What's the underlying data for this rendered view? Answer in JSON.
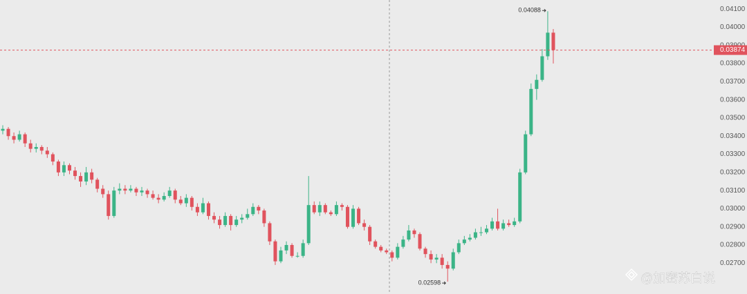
{
  "chart_data": {
    "type": "candlestick",
    "opens": [
      0.0343,
      0.0344,
      0.034,
      0.0338,
      0.0341,
      0.0336,
      0.0333,
      0.0334,
      0.0332,
      0.033,
      0.0326,
      0.032,
      0.0324,
      0.0321,
      0.0318,
      0.0315,
      0.032,
      0.0316,
      0.0311,
      0.0308,
      0.0296,
      0.031,
      0.0311,
      0.031,
      0.0311,
      0.0309,
      0.031,
      0.0308,
      0.0306,
      0.0305,
      0.0307,
      0.031,
      0.0305,
      0.0303,
      0.0306,
      0.0301,
      0.0298,
      0.0303,
      0.0296,
      0.0294,
      0.0291,
      0.0296,
      0.0291,
      0.0294,
      0.0295,
      0.0297,
      0.0301,
      0.0299,
      0.0292,
      0.0282,
      0.0271,
      0.0277,
      0.028,
      0.0274,
      0.0274,
      0.0281,
      0.0302,
      0.0298,
      0.0302,
      0.0298,
      0.0297,
      0.0302,
      0.0301,
      0.029,
      0.03,
      0.0292,
      0.029,
      0.0282,
      0.0279,
      0.0277,
      0.0276,
      0.0273,
      0.0279,
      0.0283,
      0.0288,
      0.0286,
      0.0278,
      0.0275,
      0.0272,
      0.0273,
      0.0269,
      0.0267,
      0.0276,
      0.0281,
      0.0283,
      0.0284,
      0.0287,
      0.0287,
      0.0289,
      0.0293,
      0.0289,
      0.0292,
      0.0291,
      0.0293,
      0.032,
      0.0341,
      0.0366,
      0.0371,
      0.0384,
      0.0397
    ],
    "highs": [
      0.0346,
      0.0345,
      0.0342,
      0.0343,
      0.0342,
      0.0338,
      0.0336,
      0.0335,
      0.0334,
      0.0331,
      0.0327,
      0.0326,
      0.0325,
      0.0323,
      0.032,
      0.0323,
      0.0322,
      0.0317,
      0.0313,
      0.031,
      0.0312,
      0.0314,
      0.0313,
      0.0313,
      0.0312,
      0.0312,
      0.0311,
      0.031,
      0.0308,
      0.0309,
      0.0312,
      0.0311,
      0.0307,
      0.0308,
      0.0307,
      0.0303,
      0.0306,
      0.0304,
      0.0298,
      0.0296,
      0.0298,
      0.0297,
      0.0296,
      0.0297,
      0.03,
      0.0303,
      0.0302,
      0.03,
      0.0293,
      0.0283,
      0.0279,
      0.0282,
      0.0281,
      0.0276,
      0.0283,
      0.0318,
      0.0304,
      0.0304,
      0.0303,
      0.0299,
      0.0304,
      0.0303,
      0.0302,
      0.0302,
      0.0301,
      0.0294,
      0.0291,
      0.0283,
      0.028,
      0.0278,
      0.0277,
      0.0281,
      0.0285,
      0.0291,
      0.0289,
      0.0287,
      0.0279,
      0.0277,
      0.0275,
      0.0275,
      0.0271,
      0.0278,
      0.0283,
      0.0285,
      0.0286,
      0.0289,
      0.029,
      0.0291,
      0.0295,
      0.03,
      0.0294,
      0.0294,
      0.0295,
      0.0322,
      0.0343,
      0.0369,
      0.0374,
      0.0388,
      0.04088,
      0.0399
    ],
    "lows": [
      0.0341,
      0.0338,
      0.0336,
      0.0337,
      0.0334,
      0.0331,
      0.0331,
      0.033,
      0.0328,
      0.0324,
      0.0318,
      0.0318,
      0.0319,
      0.0316,
      0.0312,
      0.0313,
      0.0314,
      0.0309,
      0.0306,
      0.0294,
      0.0295,
      0.0308,
      0.0308,
      0.0309,
      0.0307,
      0.0307,
      0.0306,
      0.0305,
      0.0303,
      0.0304,
      0.0306,
      0.0303,
      0.0302,
      0.0301,
      0.0299,
      0.0296,
      0.0297,
      0.0294,
      0.0292,
      0.0289,
      0.029,
      0.0288,
      0.029,
      0.0292,
      0.0294,
      0.0296,
      0.0297,
      0.029,
      0.028,
      0.0269,
      0.027,
      0.0275,
      0.0273,
      0.0273,
      0.0273,
      0.028,
      0.0297,
      0.0296,
      0.0297,
      0.0296,
      0.0296,
      0.0299,
      0.0289,
      0.0289,
      0.0291,
      0.0288,
      0.028,
      0.0278,
      0.0276,
      0.0275,
      0.0271,
      0.0272,
      0.0278,
      0.0282,
      0.0284,
      0.0277,
      0.0273,
      0.027,
      0.027,
      0.0267,
      0.02598,
      0.0266,
      0.0275,
      0.028,
      0.0282,
      0.0283,
      0.0285,
      0.0286,
      0.0288,
      0.0288,
      0.0288,
      0.029,
      0.029,
      0.0292,
      0.0319,
      0.034,
      0.036,
      0.037,
      0.0382,
      0.038
    ],
    "closes": [
      0.0344,
      0.034,
      0.0338,
      0.0341,
      0.0336,
      0.0333,
      0.0334,
      0.0332,
      0.033,
      0.0326,
      0.032,
      0.0324,
      0.0321,
      0.0318,
      0.0315,
      0.032,
      0.0316,
      0.0311,
      0.0308,
      0.0296,
      0.031,
      0.0311,
      0.031,
      0.0311,
      0.0309,
      0.031,
      0.0308,
      0.0306,
      0.0305,
      0.0307,
      0.031,
      0.0305,
      0.0303,
      0.0306,
      0.0301,
      0.0298,
      0.0303,
      0.0296,
      0.0294,
      0.0291,
      0.0296,
      0.0291,
      0.0294,
      0.0295,
      0.0297,
      0.0301,
      0.0299,
      0.0292,
      0.0282,
      0.0271,
      0.0277,
      0.028,
      0.0274,
      0.0274,
      0.0281,
      0.0302,
      0.0298,
      0.0302,
      0.0298,
      0.0297,
      0.0302,
      0.0301,
      0.029,
      0.03,
      0.0292,
      0.029,
      0.0282,
      0.0279,
      0.0277,
      0.0276,
      0.0273,
      0.0279,
      0.0283,
      0.0288,
      0.0286,
      0.0278,
      0.0275,
      0.0272,
      0.0273,
      0.0269,
      0.0267,
      0.0276,
      0.0281,
      0.0283,
      0.0284,
      0.0287,
      0.0287,
      0.0289,
      0.0293,
      0.0289,
      0.0292,
      0.0291,
      0.0293,
      0.032,
      0.0341,
      0.0366,
      0.0371,
      0.0384,
      0.0397,
      0.03874
    ],
    "up_color": "#3bb487",
    "down_color": "#e0535d",
    "ylim": [
      0.0253,
      0.0415
    ],
    "yticks": [
      {
        "value": 0.027,
        "label": "0.02700"
      },
      {
        "value": 0.028,
        "label": "0.02800"
      },
      {
        "value": 0.029,
        "label": "0.02900"
      },
      {
        "value": 0.03,
        "label": "0.03000"
      },
      {
        "value": 0.031,
        "label": "0.03100"
      },
      {
        "value": 0.032,
        "label": "0.03200"
      },
      {
        "value": 0.033,
        "label": "0.03300"
      },
      {
        "value": 0.034,
        "label": "0.03400"
      },
      {
        "value": 0.035,
        "label": "0.03500"
      },
      {
        "value": 0.036,
        "label": "0.03600"
      },
      {
        "value": 0.037,
        "label": "0.03700"
      },
      {
        "value": 0.038,
        "label": "0.03800"
      },
      {
        "value": 0.039,
        "label": "0.03900"
      },
      {
        "value": 0.04,
        "label": "0.04000"
      },
      {
        "value": 0.041,
        "label": "0.04100"
      }
    ],
    "grid": false,
    "max_label": "0.04088",
    "min_label": "0.02598",
    "last_price": {
      "value": 0.03874,
      "label": "0.03874"
    },
    "watermark": "@加密苏白说"
  }
}
